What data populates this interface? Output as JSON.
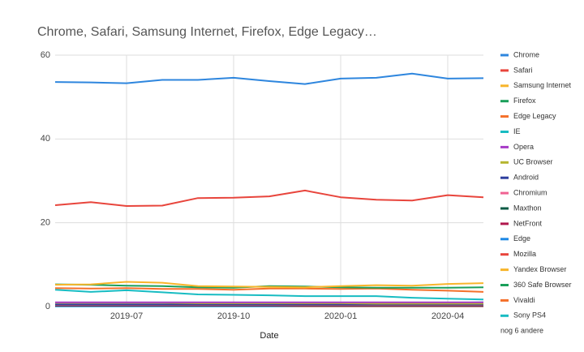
{
  "chart_data": {
    "type": "line",
    "title": "Chrome, Safari, Samsung Internet, Firefox, Edge Legacy…",
    "x_label": "Date",
    "categories": [
      null,
      null,
      "2019-07",
      null,
      null,
      "2019-10",
      null,
      null,
      "2020-01",
      null,
      null,
      "2020-04",
      null
    ],
    "ylim": [
      0,
      60
    ],
    "yticks": [
      0,
      20,
      40,
      60
    ],
    "grid": true,
    "series": [
      {
        "name": "Chrome",
        "color": "#2e86de",
        "values": [
          53.6,
          53.5,
          53.3,
          54.1,
          54.1,
          54.6,
          53.8,
          53.1,
          54.4,
          54.6,
          55.6,
          54.4,
          54.5
        ]
      },
      {
        "name": "Safari",
        "color": "#e8453c",
        "values": [
          24.2,
          24.9,
          24.0,
          24.1,
          25.9,
          26.0,
          26.3,
          27.7,
          26.1,
          25.5,
          25.3,
          26.6,
          26.1
        ]
      },
      {
        "name": "Samsung Internet",
        "color": "#f7b52b",
        "values": [
          5.2,
          5.3,
          5.9,
          5.7,
          4.9,
          4.8,
          4.7,
          4.6,
          4.9,
          5.1,
          5.0,
          5.4,
          5.6
        ]
      },
      {
        "name": "Firefox",
        "color": "#1a9f5a",
        "values": [
          5.3,
          5.2,
          5.0,
          4.9,
          4.6,
          4.5,
          4.9,
          4.8,
          4.6,
          4.5,
          4.5,
          4.5,
          4.6
        ]
      },
      {
        "name": "Edge Legacy",
        "color": "#f5702a",
        "values": [
          4.4,
          4.3,
          4.4,
          4.2,
          4.2,
          4.0,
          4.3,
          4.3,
          4.2,
          4.3,
          4.0,
          3.8,
          3.5
        ]
      },
      {
        "name": "IE",
        "color": "#18bcc2",
        "values": [
          4.0,
          3.5,
          3.9,
          3.4,
          2.9,
          2.8,
          2.7,
          2.5,
          2.5,
          2.5,
          2.1,
          1.9,
          1.7
        ]
      },
      {
        "name": "Opera",
        "color": "#a73bc7",
        "values": [
          1.0,
          1.0,
          1.0,
          1.0,
          1.0,
          1.0,
          1.0,
          1.0,
          1.0,
          1.0,
          1.0,
          1.0,
          1.0
        ]
      },
      {
        "name": "UC Browser",
        "color": "#b5b52f",
        "values": [
          0.9,
          0.9,
          0.9,
          0.9,
          0.8,
          0.8,
          0.8,
          0.8,
          0.8,
          0.7,
          0.7,
          0.7,
          0.7
        ]
      },
      {
        "name": "Android",
        "color": "#2d3e9e",
        "values": [
          0.5,
          0.5,
          0.5,
          0.5,
          0.5,
          0.5,
          0.5,
          0.5,
          0.5,
          0.5,
          0.5,
          0.5,
          0.5
        ]
      },
      {
        "name": "Chromium",
        "color": "#f06292",
        "values": [
          0.4,
          0.4,
          0.4,
          0.4,
          0.4,
          0.4,
          0.4,
          0.4,
          0.4,
          0.4,
          0.4,
          0.4,
          0.4
        ]
      },
      {
        "name": "Maxthon",
        "color": "#0b5b45",
        "values": [
          0.3,
          0.3,
          0.3,
          0.3,
          0.3,
          0.3,
          0.3,
          0.3,
          0.3,
          0.3,
          0.3,
          0.3,
          0.3
        ]
      },
      {
        "name": "NetFront",
        "color": "#b0174d",
        "values": [
          0.2,
          0.2,
          0.2,
          0.2,
          0.2,
          0.2,
          0.2,
          0.2,
          0.2,
          0.2,
          0.2,
          0.2,
          0.2
        ]
      },
      {
        "name": "Edge",
        "color": "#1e88e5",
        "values": [
          0.1,
          0.1,
          0.1,
          0.1,
          0.1,
          0.1,
          0.1,
          0.2,
          0.4,
          0.6,
          0.8,
          0.9,
          1.0
        ]
      },
      {
        "name": "Mozilla",
        "color": "#e8453c",
        "values": [
          0.1,
          0.1,
          0.1,
          0.1,
          0.1,
          0.1,
          0.1,
          0.1,
          0.1,
          0.1,
          0.1,
          0.1,
          0.1
        ]
      },
      {
        "name": "Yandex Browser",
        "color": "#f7b52b",
        "values": [
          0.3,
          0.3,
          0.3,
          0.3,
          0.3,
          0.3,
          0.3,
          0.3,
          0.3,
          0.3,
          0.3,
          0.3,
          0.3
        ]
      },
      {
        "name": "360 Safe Browser",
        "color": "#1a9f5a",
        "values": [
          0.2,
          0.2,
          0.2,
          0.2,
          0.2,
          0.2,
          0.2,
          0.2,
          0.2,
          0.2,
          0.2,
          0.2,
          0.2
        ]
      },
      {
        "name": "Vivaldi",
        "color": "#f5702a",
        "values": [
          0.1,
          0.1,
          0.1,
          0.1,
          0.1,
          0.1,
          0.1,
          0.1,
          0.1,
          0.1,
          0.1,
          0.1,
          0.1
        ]
      },
      {
        "name": "Sony PS4",
        "color": "#18bcc2",
        "values": [
          0.05,
          0.05,
          0.05,
          0.05,
          0.05,
          0.05,
          0.05,
          0.05,
          0.05,
          0.05,
          0.05,
          0.05,
          0.05
        ]
      }
    ],
    "legend_more": "nog 6 andere"
  }
}
